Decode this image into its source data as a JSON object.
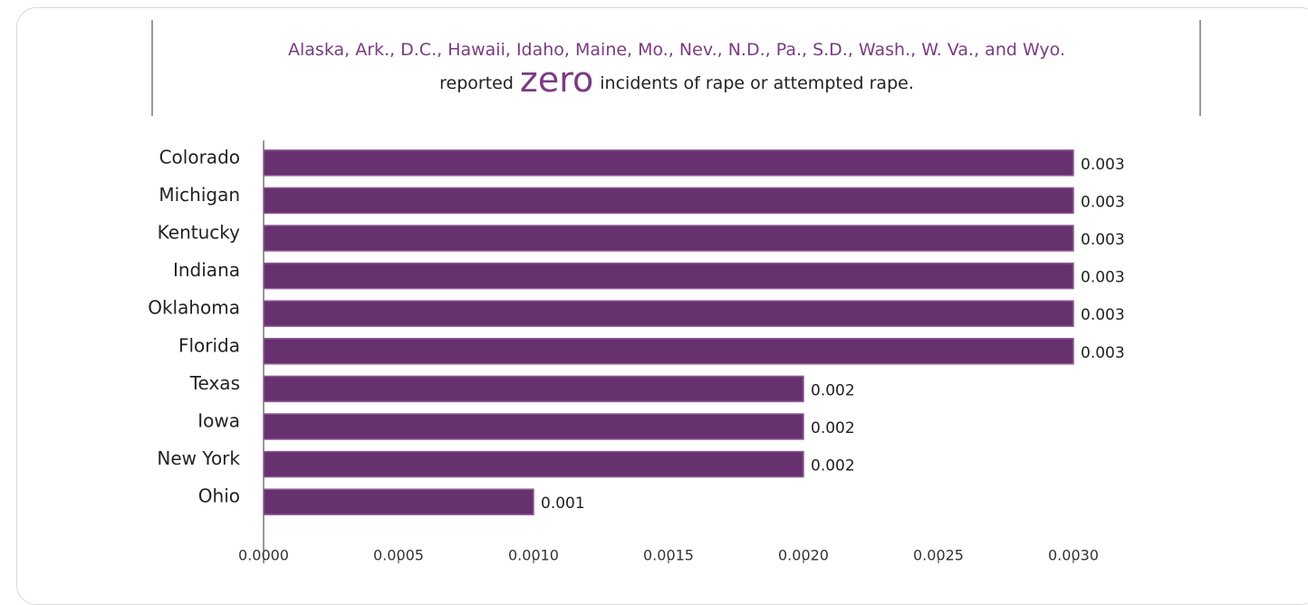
{
  "chart_data": {
    "type": "bar",
    "orientation": "horizontal",
    "title": "Alaska, Ark., D.C., Hawaii, Idaho, Maine, Mo., Nev., N.D., Pa., S.D., Wash., W. Va., and Wyo.",
    "annotation": {
      "before": "reported",
      "highlight": "zero",
      "after": "incidents of rape or attempted rape."
    },
    "categories": [
      "Colorado",
      "Michigan",
      "Kentucky",
      "Indiana",
      "Oklahoma",
      "Florida",
      "Texas",
      "Iowa",
      "New York",
      "Ohio"
    ],
    "values": [
      0.003,
      0.003,
      0.003,
      0.003,
      0.003,
      0.003,
      0.002,
      0.002,
      0.002,
      0.001
    ],
    "color": "#67306f",
    "xlim": [
      0,
      0.003
    ],
    "xticks": [
      {
        "value": 0,
        "label": "0.0000"
      },
      {
        "value": 0.0005,
        "label": "0.0005"
      },
      {
        "value": 0.001,
        "label": "0.0010"
      },
      {
        "value": 0.0015,
        "label": "0.0015"
      },
      {
        "value": 0.002,
        "label": "0.0020"
      },
      {
        "value": 0.0025,
        "label": "0.0025"
      },
      {
        "value": 0.003,
        "label": "0.0030"
      }
    ],
    "grid": false
  }
}
